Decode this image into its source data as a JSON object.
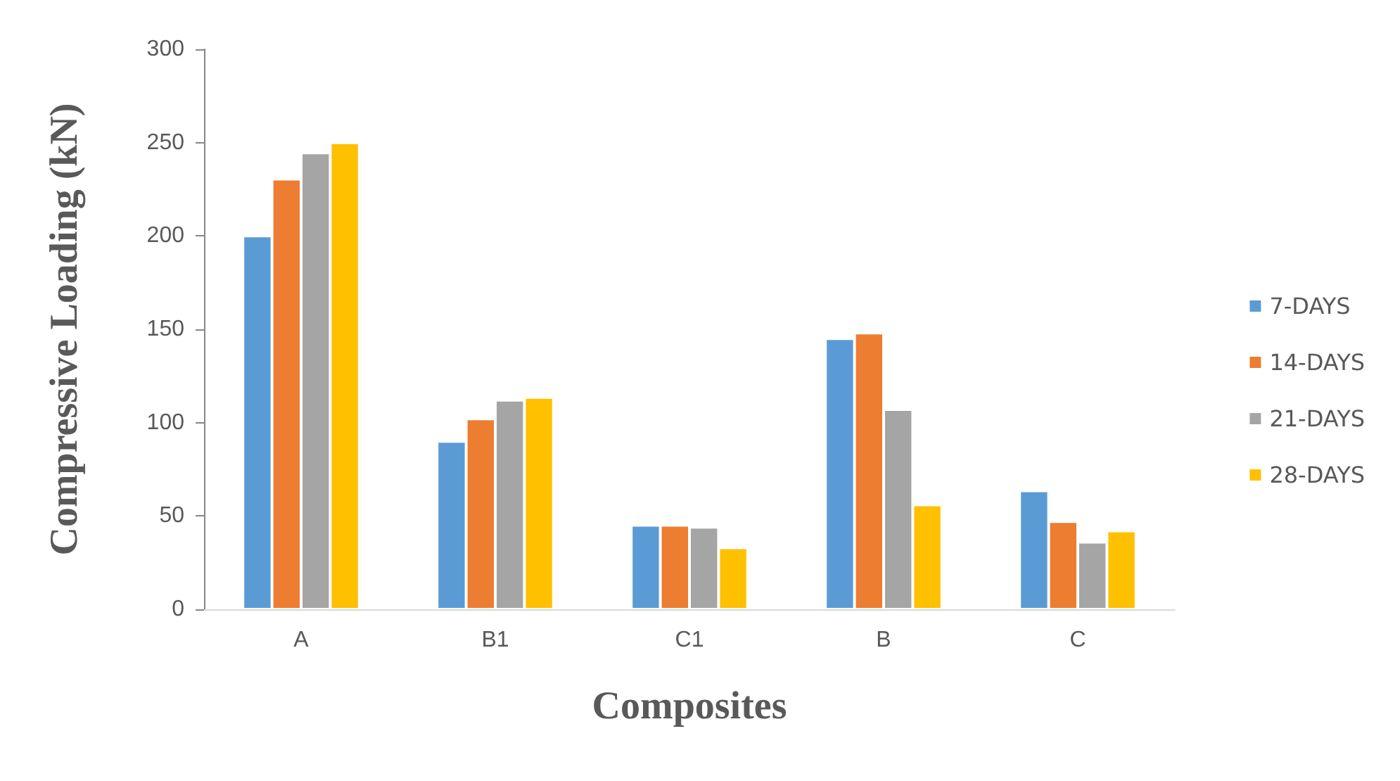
{
  "chart_data": {
    "type": "bar",
    "xlabel": "Composites",
    "ylabel": "Compressive Loading (kN)",
    "categories": [
      "A",
      "B1",
      "C1",
      "B",
      "C"
    ],
    "series": [
      {
        "name": "7-DAYS",
        "color": "#5b9bd5",
        "values": [
          200,
          90,
          45,
          145,
          63.5
        ]
      },
      {
        "name": "14-DAYS",
        "color": "#ed7d31",
        "values": [
          230.5,
          102,
          45,
          148,
          47
        ]
      },
      {
        "name": "21-DAYS",
        "color": "#a5a5a5",
        "values": [
          244.5,
          112,
          44,
          107,
          36
        ]
      },
      {
        "name": "28-DAYS",
        "color": "#ffc000",
        "values": [
          250,
          113.5,
          33,
          56,
          42
        ]
      }
    ],
    "ylim": [
      0,
      300
    ],
    "yticks": [
      0,
      50,
      100,
      150,
      200,
      250,
      300
    ],
    "grid": false,
    "legend": "right"
  }
}
